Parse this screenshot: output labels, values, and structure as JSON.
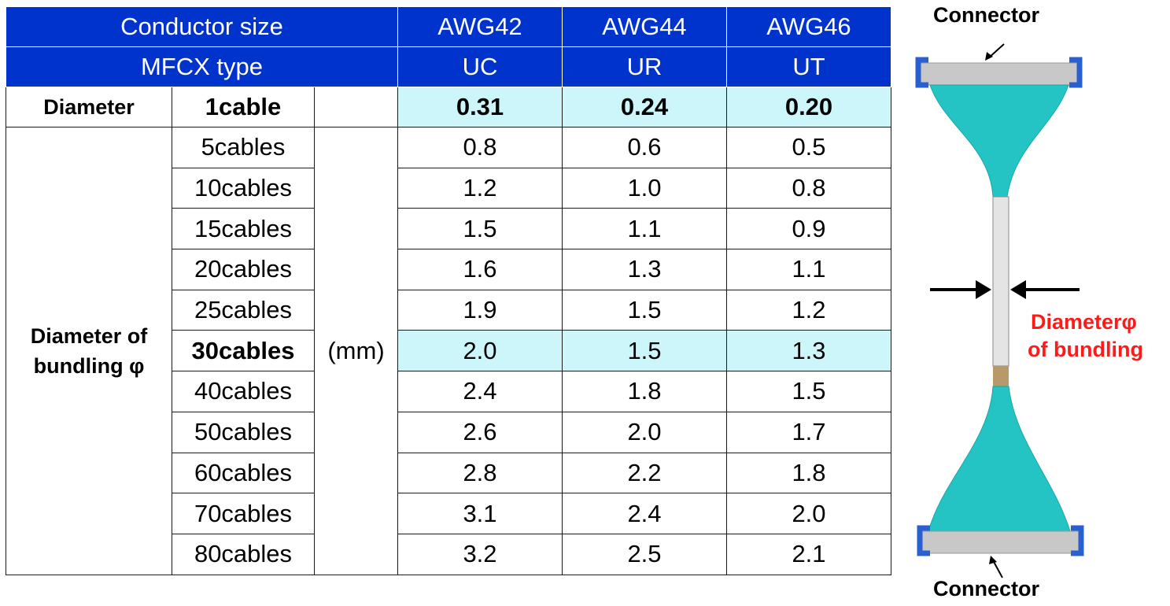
{
  "table": {
    "header1": {
      "label": "Conductor size",
      "cols": [
        "AWG42",
        "AWG44",
        "AWG46"
      ]
    },
    "header2": {
      "label": "MFCX type",
      "cols": [
        "UC",
        "UR",
        "UT"
      ]
    },
    "diameter_row": {
      "label": "Diameter",
      "sub": "1cable",
      "values": [
        "0.31",
        "0.24",
        "0.20"
      ]
    },
    "bundle_label": "Diameter of bundling φ",
    "unit": "(mm)",
    "rows": [
      {
        "cables": "5cables",
        "values": [
          "0.8",
          "0.6",
          "0.5"
        ]
      },
      {
        "cables": "10cables",
        "values": [
          "1.2",
          "1.0",
          "0.8"
        ]
      },
      {
        "cables": "15cables",
        "values": [
          "1.5",
          "1.1",
          "0.9"
        ]
      },
      {
        "cables": "20cables",
        "values": [
          "1.6",
          "1.3",
          "1.1"
        ]
      },
      {
        "cables": "25cables",
        "values": [
          "1.9",
          "1.5",
          "1.2"
        ]
      },
      {
        "cables": "30cables",
        "values": [
          "2.0",
          "1.5",
          "1.3"
        ]
      },
      {
        "cables": "40cables",
        "values": [
          "2.4",
          "1.8",
          "1.5"
        ]
      },
      {
        "cables": "50cables",
        "values": [
          "2.6",
          "2.0",
          "1.7"
        ]
      },
      {
        "cables": "60cables",
        "values": [
          "2.8",
          "2.2",
          "1.8"
        ]
      },
      {
        "cables": "70cables",
        "values": [
          "3.1",
          "2.4",
          "2.0"
        ]
      },
      {
        "cables": "80cables",
        "values": [
          "3.2",
          "2.5",
          "2.1"
        ]
      }
    ]
  },
  "diagram": {
    "top_label": "Connector",
    "bottom_label": "Connector",
    "diameter_label_line1": "Diameterφ",
    "diameter_label_line2": "of bundling"
  },
  "colors": {
    "header_bg": "#0033cc",
    "highlight_bg": "#ccf6f9",
    "cable_teal": "#25c4c4",
    "label_red": "#ff1a1a"
  }
}
